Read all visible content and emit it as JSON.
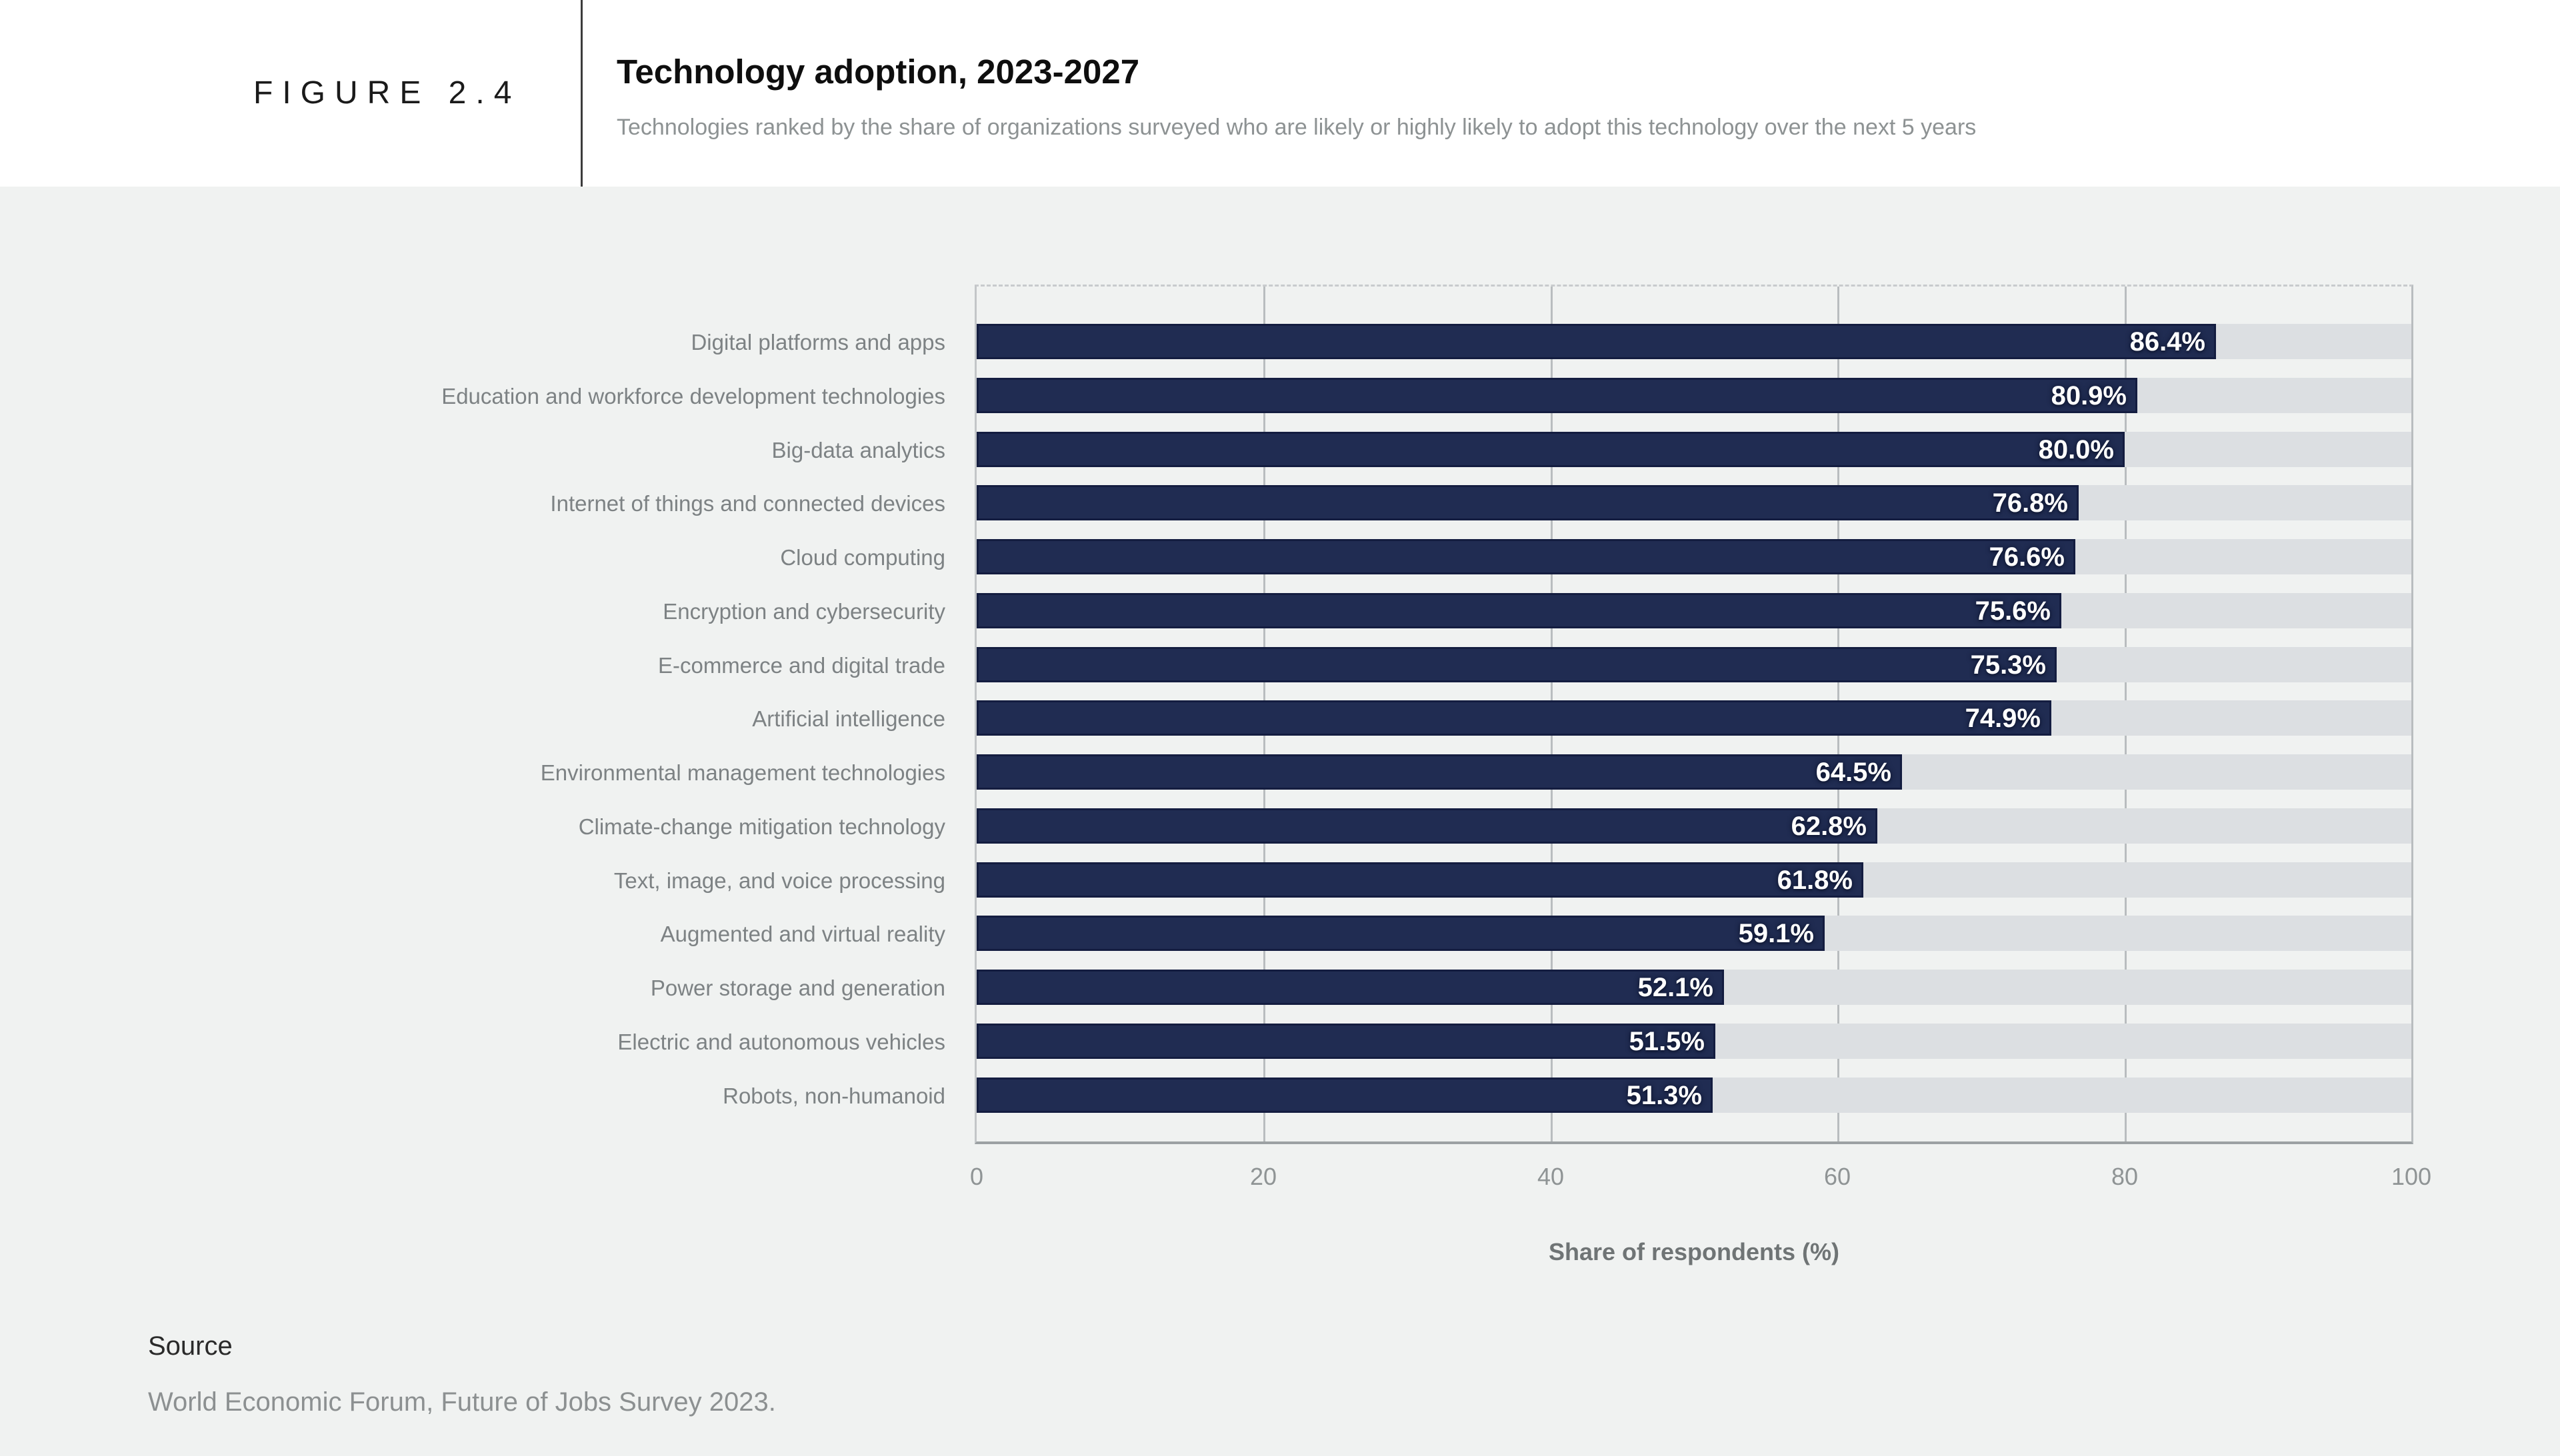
{
  "figure": {
    "label": "FIGURE 2.4"
  },
  "header": {
    "title": "Technology adoption, 2023-2027",
    "subtitle": "Technologies ranked by the share of organizations surveyed who are likely or highly likely to adopt this technology over the next 5 years"
  },
  "chart_data": {
    "type": "bar",
    "orientation": "horizontal",
    "title": "Technology adoption, 2023-2027",
    "categories": [
      "Digital platforms and apps",
      "Education and workforce development technologies",
      "Big-data analytics",
      "Internet of things and connected devices",
      "Cloud computing",
      "Encryption and cybersecurity",
      "E-commerce and digital trade",
      "Artificial intelligence",
      "Environmental management technologies",
      "Climate-change mitigation technology",
      "Text, image, and voice processing",
      "Augmented and virtual reality",
      "Power storage and generation",
      "Electric and autonomous vehicles",
      "Robots, non-humanoid"
    ],
    "values": [
      86.4,
      80.9,
      80.0,
      76.8,
      76.6,
      75.6,
      75.3,
      74.9,
      64.5,
      62.8,
      61.8,
      59.1,
      52.1,
      51.5,
      51.3
    ],
    "value_labels": [
      "86.4%",
      "80.9%",
      "80.0%",
      "76.8%",
      "76.6%",
      "75.6%",
      "75.3%",
      "74.9%",
      "64.5%",
      "62.8%",
      "61.8%",
      "59.1%",
      "52.1%",
      "51.5%",
      "51.3%"
    ],
    "xlabel": "Share of respondents (%)",
    "xticks": [
      0,
      20,
      40,
      60,
      80,
      100
    ],
    "xtick_labels": [
      "0",
      "20",
      "40",
      "60",
      "80",
      "100"
    ],
    "xlim": [
      0,
      100
    ],
    "grid": true,
    "legend_position": "none",
    "bar_color": "#202c52",
    "track_color": "#dcdfe2",
    "value_label_color": "#ffffff"
  },
  "source": {
    "heading": "Source",
    "text": "World Economic Forum, Future of Jobs Survey 2023."
  }
}
